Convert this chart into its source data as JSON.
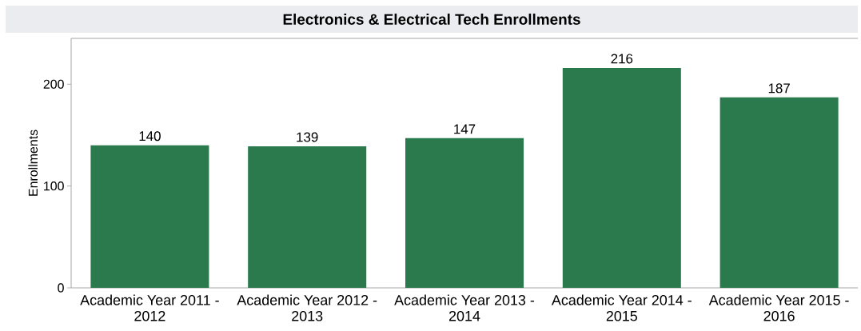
{
  "chart_data": {
    "type": "bar",
    "title": "Electronics & Electrical Tech Enrollments",
    "ylabel": "Enrollments",
    "categories": [
      "Academic Year 2011 - 2012",
      "Academic Year 2012 - 2013",
      "Academic Year 2013 - 2014",
      "Academic Year 2014 - 2015",
      "Academic Year 2015 - 2016"
    ],
    "values": [
      140,
      139,
      147,
      216,
      187
    ],
    "color": "#2a7a4d",
    "ylim": [
      0,
      245
    ],
    "yticks": [
      0,
      100,
      200
    ],
    "data_labels": true,
    "grid": false
  }
}
